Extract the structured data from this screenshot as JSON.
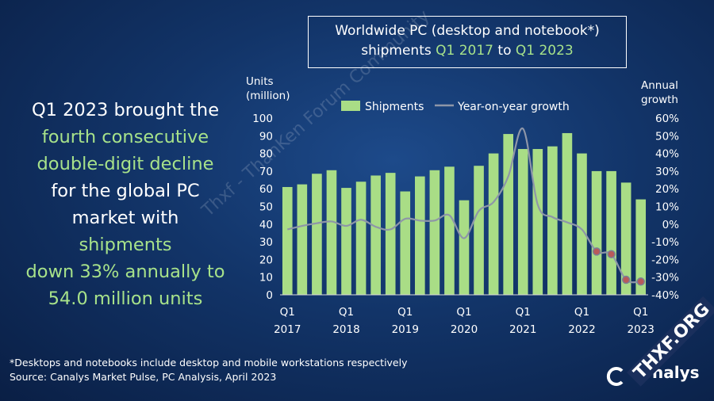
{
  "title": {
    "line1": "Worldwide PC (desktop and notebook*)",
    "line2_pre": "shipments ",
    "line2_q1": "Q1 2017",
    "line2_mid": " to ",
    "line2_q2": "Q1 2023"
  },
  "headline": [
    {
      "text": "Q1 2023 brought the",
      "highlight": false
    },
    {
      "text": "fourth consecutive",
      "highlight": true
    },
    {
      "text": "double-digit decline",
      "highlight": true
    },
    {
      "text": "for the global PC",
      "highlight": false
    },
    {
      "text": "market with shipments",
      "highlight_part": "shipments",
      "prefix": "market with "
    },
    {
      "text": "down 33% annually to",
      "highlight": true
    },
    {
      "text": "54.0 million units",
      "highlight": true
    }
  ],
  "colors": {
    "bar": "#a9dd86",
    "line": "#8e96a8",
    "highlight_text": "#a7e28a",
    "marker": "#b85a5a"
  },
  "footnotes": {
    "note": "*Desktops and notebooks include desktop and mobile workstations respectively",
    "source": "Source: Canalys Market Pulse, PC Analysis, April 2023"
  },
  "logo": {
    "text": "nalys"
  },
  "watermark": "Thxf - ThanKen Forum Community",
  "badge": "THXF.ORG",
  "chart_data": {
    "type": "bar",
    "y_title": [
      "Units",
      "(million)"
    ],
    "y2_title": [
      "Annual",
      "growth"
    ],
    "ylim": [
      0,
      100
    ],
    "y_ticks": [
      0,
      10,
      20,
      30,
      40,
      50,
      60,
      70,
      80,
      90,
      100
    ],
    "y2lim": [
      -40,
      60
    ],
    "y2_ticks": [
      "60%",
      "50%",
      "40%",
      "30%",
      "20%",
      "10%",
      "0%",
      "-10%",
      "-20%",
      "-30%",
      "-40%"
    ],
    "x_labels": [
      {
        "index": 0,
        "q": "Q1",
        "year": "2017"
      },
      {
        "index": 4,
        "q": "Q1",
        "year": "2018"
      },
      {
        "index": 8,
        "q": "Q1",
        "year": "2019"
      },
      {
        "index": 12,
        "q": "Q1",
        "year": "2020"
      },
      {
        "index": 16,
        "q": "Q1",
        "year": "2021"
      },
      {
        "index": 20,
        "q": "Q1",
        "year": "2022"
      },
      {
        "index": 24,
        "q": "Q1",
        "year": "2023"
      }
    ],
    "series": [
      {
        "name": "Shipments",
        "kind": "bar",
        "values": [
          61,
          62.5,
          68.5,
          70.5,
          60.5,
          64,
          67.5,
          69,
          58.5,
          67,
          70.5,
          72.5,
          53.5,
          73,
          80,
          91,
          82.5,
          82.5,
          84,
          91.5,
          80,
          70,
          70,
          63.5,
          54
        ]
      },
      {
        "name": "Year-on-year growth",
        "kind": "line",
        "axis": "y2",
        "values": [
          -3,
          -1,
          0.5,
          1.5,
          -1,
          2.5,
          -1.5,
          -3,
          3,
          2,
          2,
          5,
          -8,
          7.5,
          12.5,
          27,
          54,
          11,
          4,
          1,
          -3,
          -15.5,
          -17,
          -31.5,
          -32.5
        ]
      }
    ],
    "markers_from_index": 21
  }
}
